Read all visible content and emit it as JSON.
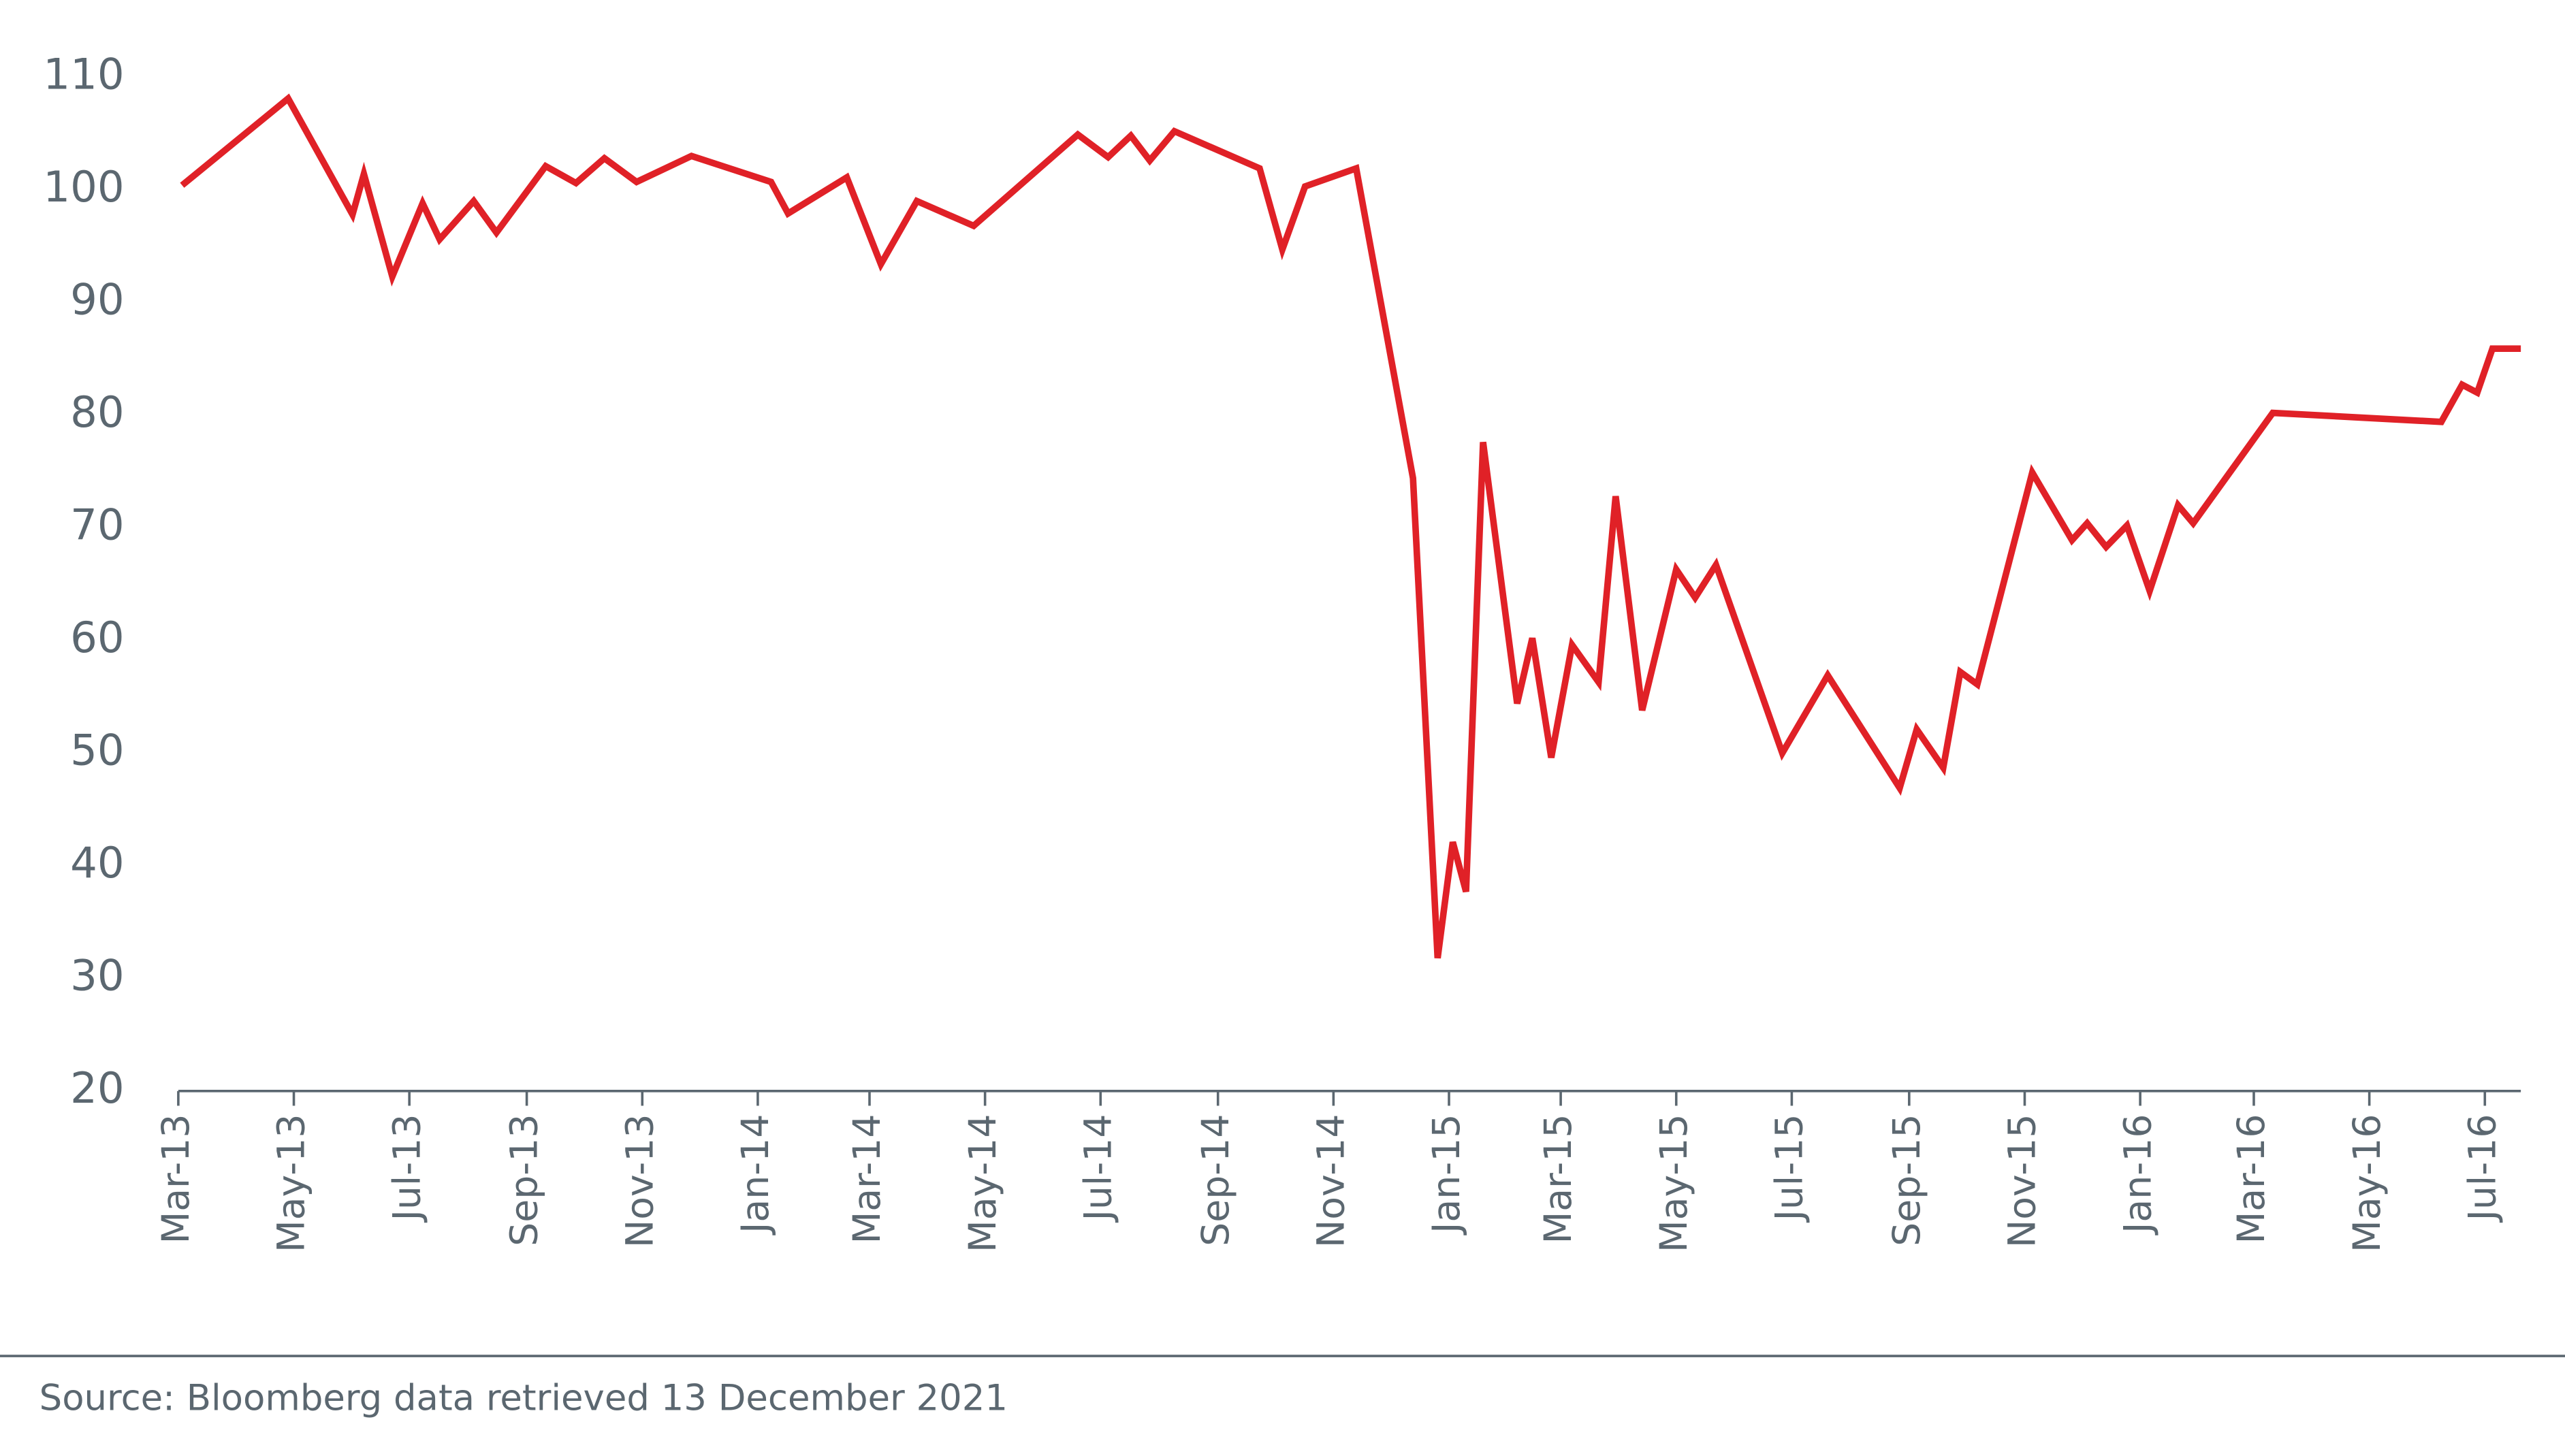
{
  "chart_data": {
    "type": "line",
    "x": [
      "2013-03-03",
      "2013-04-28",
      "2013-06-01",
      "2013-06-07",
      "2013-06-22",
      "2013-07-08",
      "2013-07-17",
      "2013-08-04",
      "2013-08-16",
      "2013-09-11",
      "2013-09-27",
      "2013-10-12",
      "2013-10-29",
      "2013-11-27",
      "2014-01-08",
      "2014-01-17",
      "2014-02-17",
      "2014-03-07",
      "2014-03-26",
      "2014-04-25",
      "2014-06-19",
      "2014-07-05",
      "2014-07-17",
      "2014-07-27",
      "2014-08-09",
      "2014-09-23",
      "2014-10-05",
      "2014-10-17",
      "2014-11-13",
      "2014-12-13",
      "2014-12-26",
      "2015-01-03",
      "2015-01-10",
      "2015-01-19",
      "2015-02-06",
      "2015-02-14",
      "2015-02-24",
      "2015-03-07",
      "2015-03-21",
      "2015-03-30",
      "2015-04-13",
      "2015-05-01",
      "2015-05-11",
      "2015-05-22",
      "2015-06-26",
      "2015-07-20",
      "2015-08-27",
      "2015-09-05",
      "2015-09-19",
      "2015-09-28",
      "2015-10-07",
      "2015-11-05",
      "2015-11-26",
      "2015-12-04",
      "2015-12-14",
      "2015-12-25",
      "2016-01-06",
      "2016-01-21",
      "2016-01-29",
      "2016-03-11",
      "2016-06-08",
      "2016-06-19",
      "2016-06-27",
      "2016-07-05",
      "2016-07-20"
    ],
    "series": [
      {
        "color": "#e02127",
        "values": [
          100.4,
          108.1,
          97.8,
          101.4,
          92.3,
          98.8,
          95.6,
          99.0,
          96.2,
          102.1,
          100.6,
          102.8,
          100.7,
          103.0,
          100.7,
          97.9,
          101.1,
          93.4,
          99.0,
          96.8,
          104.9,
          102.9,
          104.8,
          102.6,
          105.2,
          101.9,
          94.7,
          100.3,
          101.9,
          74.4,
          31.8,
          42.1,
          37.7,
          77.6,
          54.4,
          60.2,
          49.6,
          59.6,
          56.3,
          72.8,
          53.8,
          66.3,
          63.8,
          66.7,
          50.0,
          56.9,
          46.9,
          52.1,
          48.7,
          57.2,
          56.1,
          74.9,
          68.9,
          70.4,
          68.3,
          70.2,
          64.4,
          72.0,
          70.4,
          80.2,
          79.4,
          82.7,
          82.0,
          85.9,
          85.9
        ]
      }
    ],
    "xlim": [
      "2013-03-01",
      "2016-07-20"
    ],
    "xticks": [
      {
        "value": "2013-03-01",
        "label": "Mar-13"
      },
      {
        "value": "2013-05-01",
        "label": "May-13"
      },
      {
        "value": "2013-07-01",
        "label": "Jul-13"
      },
      {
        "value": "2013-09-01",
        "label": "Sep-13"
      },
      {
        "value": "2013-11-01",
        "label": "Nov-13"
      },
      {
        "value": "2014-01-01",
        "label": "Jan-14"
      },
      {
        "value": "2014-03-01",
        "label": "Mar-14"
      },
      {
        "value": "2014-05-01",
        "label": "May-14"
      },
      {
        "value": "2014-07-01",
        "label": "Jul-14"
      },
      {
        "value": "2014-09-01",
        "label": "Sep-14"
      },
      {
        "value": "2014-11-01",
        "label": "Nov-14"
      },
      {
        "value": "2015-01-01",
        "label": "Jan-15"
      },
      {
        "value": "2015-03-01",
        "label": "Mar-15"
      },
      {
        "value": "2015-05-01",
        "label": "May-15"
      },
      {
        "value": "2015-07-01",
        "label": "Jul-15"
      },
      {
        "value": "2015-09-01",
        "label": "Sep-15"
      },
      {
        "value": "2015-11-01",
        "label": "Nov-15"
      },
      {
        "value": "2016-01-01",
        "label": "Jan-16"
      },
      {
        "value": "2016-03-01",
        "label": "Mar-16"
      },
      {
        "value": "2016-05-01",
        "label": "May-16"
      },
      {
        "value": "2016-07-01",
        "label": "Jul-16"
      }
    ],
    "ylim": [
      20,
      110
    ],
    "yticks": [
      20,
      30,
      40,
      50,
      60,
      70,
      80,
      90,
      100,
      110
    ],
    "grid": false,
    "source": "Source: Bloomberg data retrieved 13 December 2021"
  }
}
